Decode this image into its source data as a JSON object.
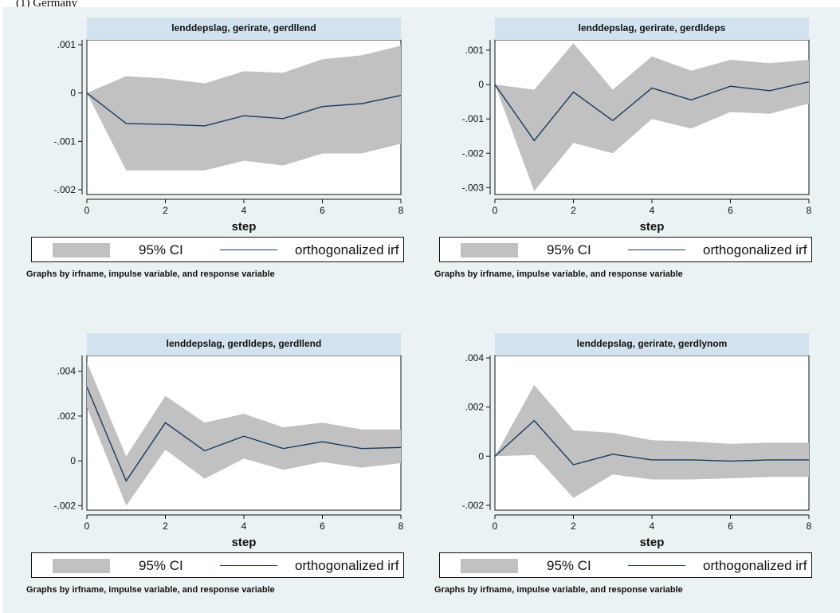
{
  "page_top_text": "(1) Germany",
  "colors": {
    "background": "#eaf2f3",
    "strip": "#d2e2ee",
    "ci_band": "#c1c1c1",
    "irf_line": "#1a3a5c"
  },
  "chart_data": [
    {
      "type": "area",
      "title": "lenddepslag, gerirate, gerdllend",
      "xlabel": "step",
      "x": [
        0,
        1,
        2,
        3,
        4,
        5,
        6,
        7,
        8
      ],
      "xticks": [
        0,
        2,
        4,
        6,
        8
      ],
      "xtick_labels": [
        "0",
        "2",
        "4",
        "6",
        "8"
      ],
      "yticks": [
        0.001,
        0,
        -0.001,
        -0.002
      ],
      "ytick_labels": [
        ".001",
        "0",
        "-.001",
        "-.002"
      ],
      "ylim": [
        -0.0021,
        0.0011
      ],
      "series": [
        {
          "name": "95% CI",
          "kind": "band",
          "lower": [
            0,
            -0.0016,
            -0.0016,
            -0.0016,
            -0.0014,
            -0.0015,
            -0.00125,
            -0.00125,
            -0.00105
          ],
          "upper": [
            0,
            0.00035,
            0.0003,
            0.0002,
            0.00045,
            0.00042,
            0.0007,
            0.00078,
            0.00098
          ]
        },
        {
          "name": "orthogonalized irf",
          "kind": "line",
          "values": [
            0,
            -0.00063,
            -0.00065,
            -0.00068,
            -0.00047,
            -0.00053,
            -0.00028,
            -0.00022,
            -5e-05
          ]
        }
      ],
      "legend": "bottom",
      "note": "Graphs by irfname, impulse variable, and response variable"
    },
    {
      "type": "area",
      "title": "lenddepslag, gerirate, gerdldeps",
      "xlabel": "step",
      "x": [
        0,
        1,
        2,
        3,
        4,
        5,
        6,
        7,
        8
      ],
      "xticks": [
        0,
        2,
        4,
        6,
        8
      ],
      "xtick_labels": [
        "0",
        "2",
        "4",
        "6",
        "8"
      ],
      "yticks": [
        0.001,
        0,
        -0.001,
        -0.002,
        -0.003
      ],
      "ytick_labels": [
        ".001",
        "0",
        "-.001",
        "-.002",
        "-.003"
      ],
      "ylim": [
        -0.0032,
        0.0013
      ],
      "series": [
        {
          "name": "95% CI",
          "kind": "band",
          "lower": [
            0,
            -0.0031,
            -0.0017,
            -0.002,
            -0.001,
            -0.00128,
            -0.0008,
            -0.00085,
            -0.00055
          ],
          "upper": [
            0,
            -0.00015,
            0.0012,
            -0.00015,
            0.00082,
            0.0004,
            0.00072,
            0.00062,
            0.00072
          ]
        },
        {
          "name": "orthogonalized irf",
          "kind": "line",
          "values": [
            0,
            -0.00163,
            -0.00022,
            -0.00105,
            -0.0001,
            -0.00045,
            -5e-05,
            -0.00018,
            8e-05
          ]
        }
      ],
      "legend": "bottom",
      "note": "Graphs by irfname, impulse variable, and response variable"
    },
    {
      "type": "area",
      "title": "lenddepslag, gerdldeps, gerdllend",
      "xlabel": "step",
      "x": [
        0,
        1,
        2,
        3,
        4,
        5,
        6,
        7,
        8
      ],
      "xticks": [
        0,
        2,
        4,
        6,
        8
      ],
      "xtick_labels": [
        "0",
        "2",
        "4",
        "6",
        "8"
      ],
      "yticks": [
        0.004,
        0.002,
        0,
        -0.002
      ],
      "ytick_labels": [
        ".004",
        ".002",
        "0",
        "-.002"
      ],
      "ylim": [
        -0.0022,
        0.0047
      ],
      "series": [
        {
          "name": "95% CI",
          "kind": "band",
          "lower": [
            0.0024,
            -0.002,
            0.0005,
            -0.0008,
            0.0001,
            -0.0004,
            -5e-05,
            -0.0003,
            -0.0001
          ],
          "upper": [
            0.0044,
            0.0002,
            0.0029,
            0.0017,
            0.0021,
            0.0015,
            0.0017,
            0.0014,
            0.0014
          ]
        },
        {
          "name": "orthogonalized irf",
          "kind": "line",
          "values": [
            0.0033,
            -0.0009,
            0.0017,
            0.00045,
            0.0011,
            0.00055,
            0.00085,
            0.00055,
            0.0006
          ]
        }
      ],
      "legend": "bottom",
      "note": "Graphs by irfname, impulse variable, and response variable"
    },
    {
      "type": "area",
      "title": "lenddepslag, gerirate, gerdlynom",
      "xlabel": "step",
      "x": [
        0,
        1,
        2,
        3,
        4,
        5,
        6,
        7,
        8
      ],
      "xticks": [
        0,
        2,
        4,
        6,
        8
      ],
      "xtick_labels": [
        "0",
        "2",
        "4",
        "6",
        "8"
      ],
      "yticks": [
        0.004,
        0.002,
        0,
        -0.002
      ],
      "ytick_labels": [
        ".004",
        ".002",
        "0",
        "-.002"
      ],
      "ylim": [
        -0.0022,
        0.0041
      ],
      "series": [
        {
          "name": "95% CI",
          "kind": "band",
          "lower": [
            0,
            5e-05,
            -0.0017,
            -0.00075,
            -0.00095,
            -0.00095,
            -0.0009,
            -0.00085,
            -0.00085
          ],
          "upper": [
            0,
            0.0029,
            0.00105,
            0.00095,
            0.00065,
            0.0006,
            0.0005,
            0.00055,
            0.00055
          ]
        },
        {
          "name": "orthogonalized irf",
          "kind": "line",
          "values": [
            0,
            0.00145,
            -0.00035,
            8e-05,
            -0.00015,
            -0.00015,
            -0.0002,
            -0.00015,
            -0.00015
          ]
        }
      ],
      "legend": "bottom",
      "note": "Graphs by irfname, impulse variable, and response variable"
    }
  ]
}
